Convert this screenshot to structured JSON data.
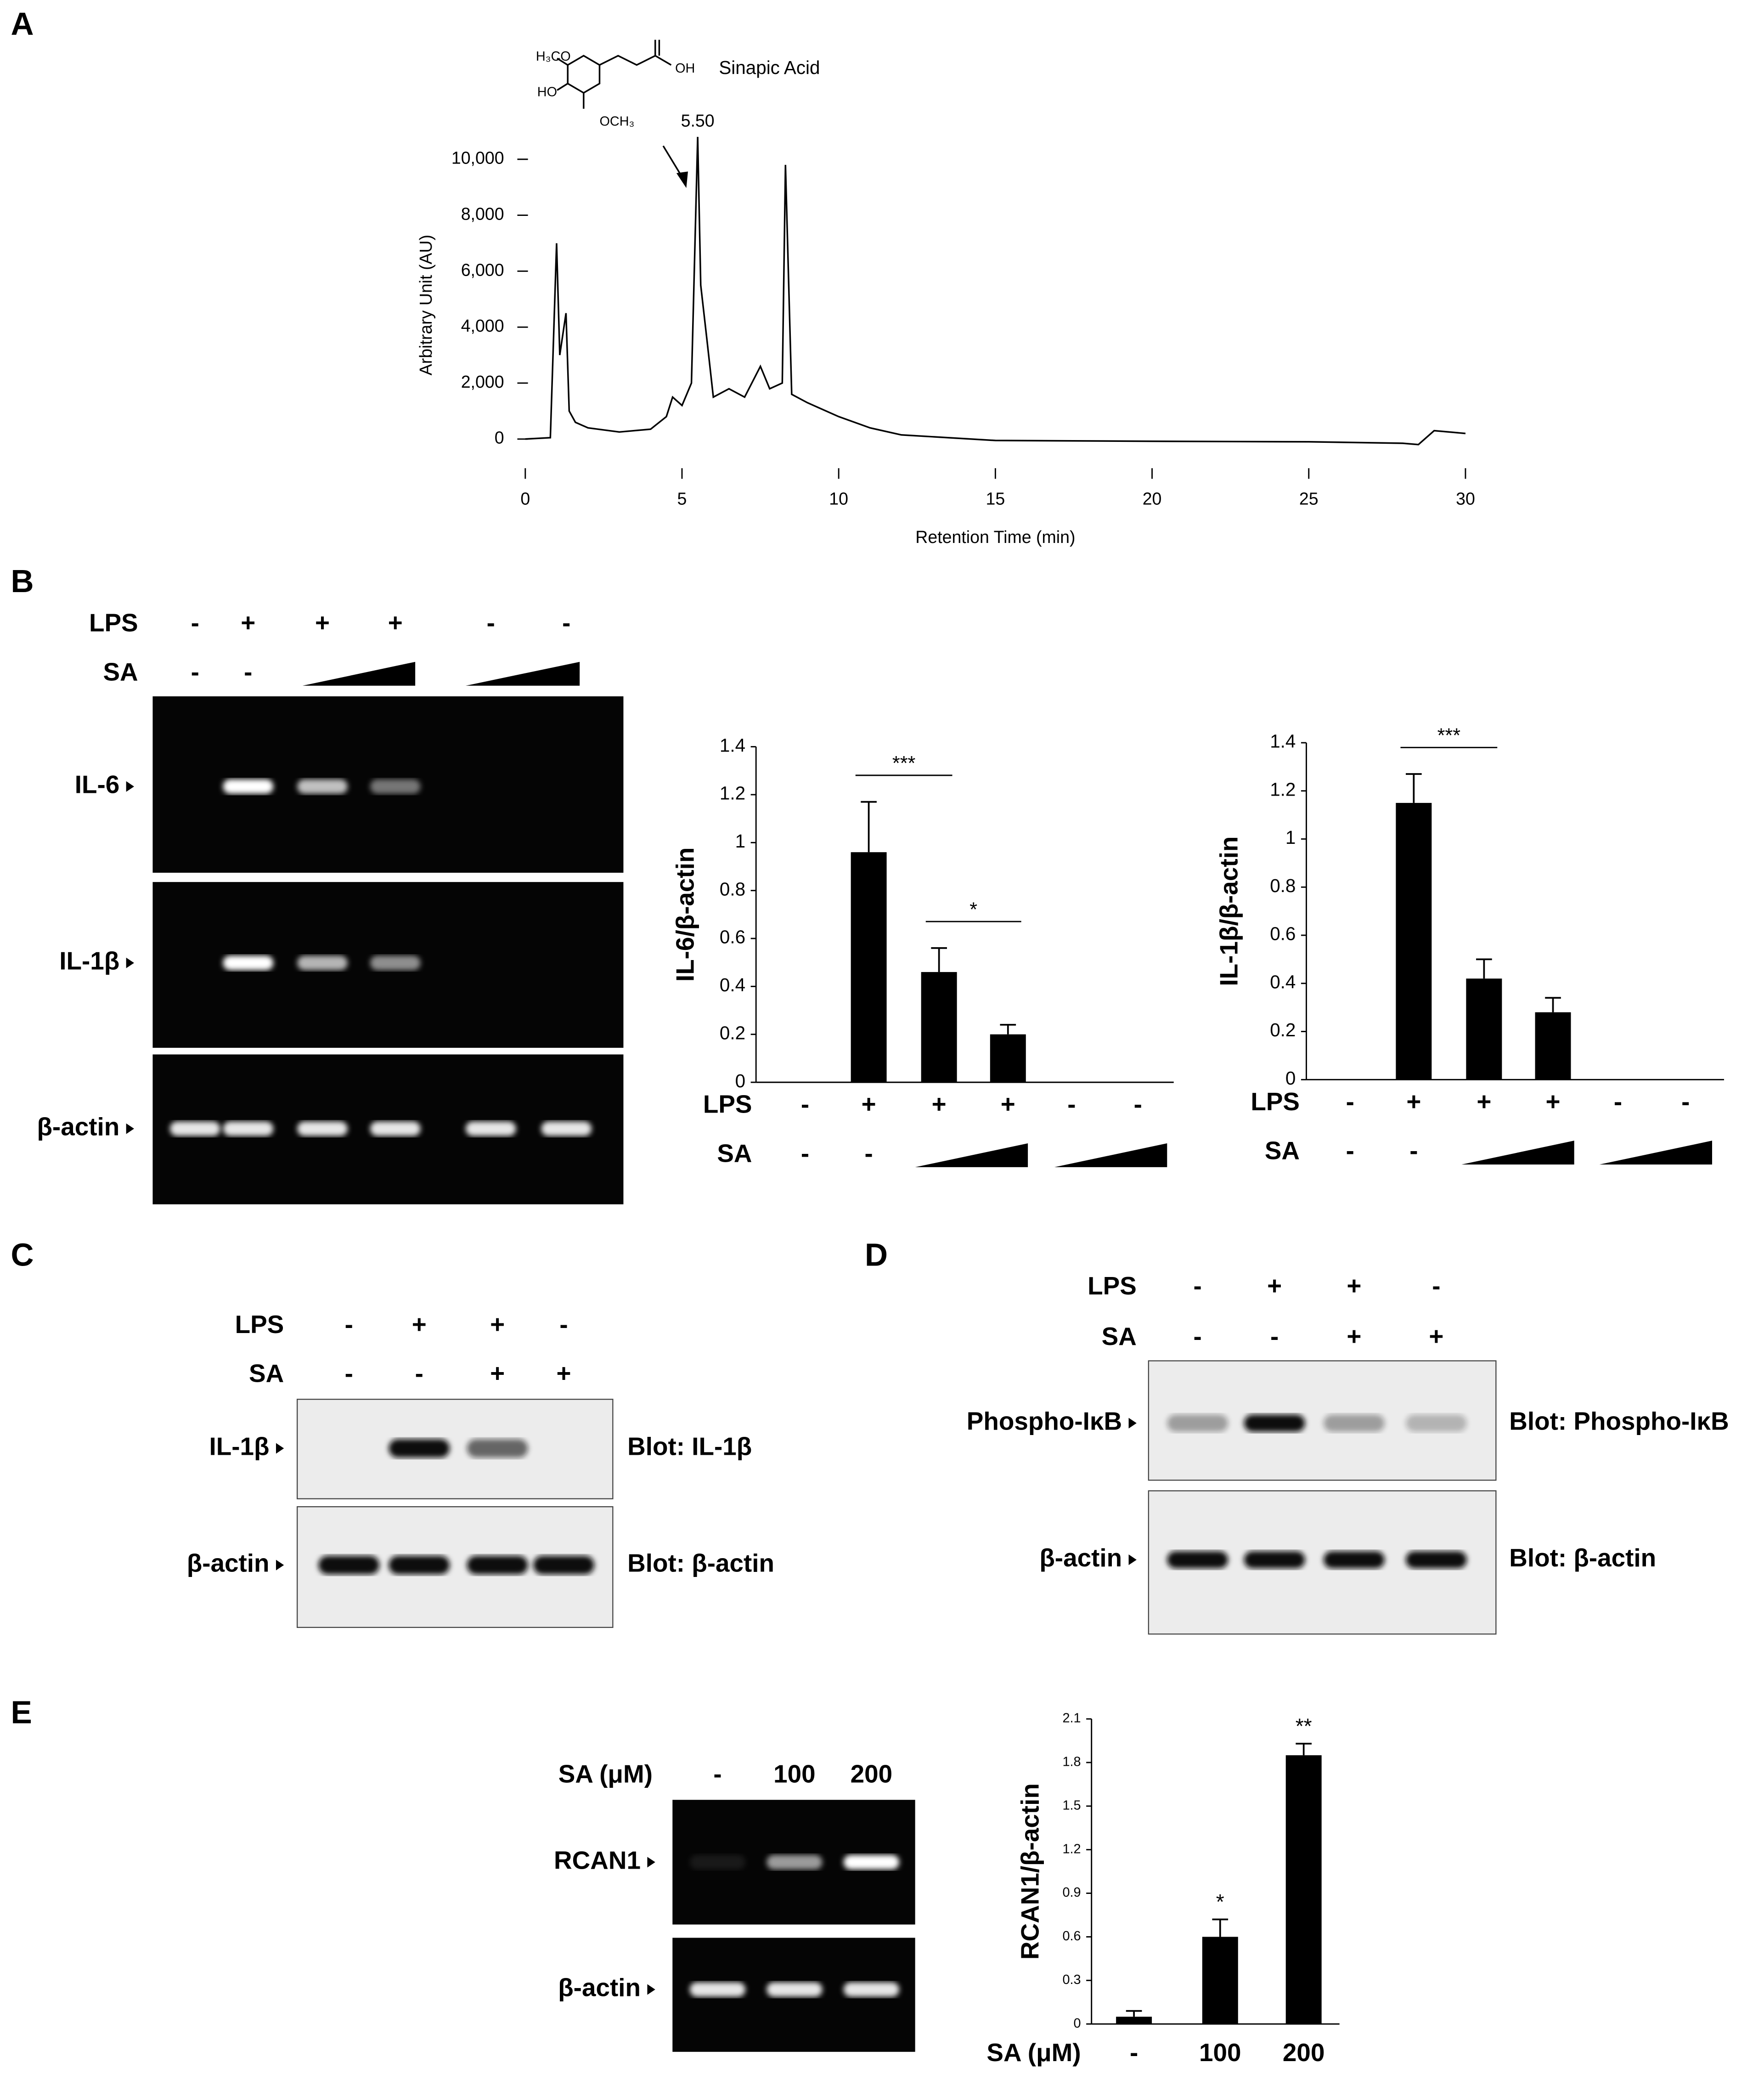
{
  "panel_labels": [
    "A",
    "B",
    "C",
    "D",
    "E"
  ],
  "structure": {
    "name": "Sinapic Acid",
    "groups": [
      "H₃CO",
      "HO",
      "OCH₃",
      "OH"
    ]
  },
  "chart_data": [
    {
      "type": "line",
      "x": [
        0,
        0.8,
        1.0,
        1.1,
        1.3,
        1.4,
        1.6,
        2,
        3,
        4,
        4.5,
        4.7,
        5.0,
        5.3,
        5.5,
        5.6,
        5.8,
        6,
        6.5,
        7,
        7.5,
        7.8,
        8.2,
        8.3,
        8.5,
        9,
        10,
        11,
        12,
        15,
        20,
        25,
        28,
        28.5,
        29,
        30
      ],
      "values": [
        0,
        50,
        7000,
        3000,
        4500,
        1000,
        600,
        400,
        250,
        350,
        800,
        1500,
        1200,
        2000,
        10800,
        5500,
        3500,
        1500,
        1800,
        1500,
        2600,
        1800,
        2000,
        9800,
        1600,
        1300,
        800,
        400,
        150,
        -50,
        -80,
        -100,
        -150,
        -200,
        300,
        200
      ],
      "color": "#000",
      "xlim": [
        0,
        30
      ],
      "ylim": [
        -900,
        11000
      ],
      "xticks": [
        0,
        5,
        10,
        15,
        20,
        25,
        30
      ],
      "yticks": [
        0,
        {
          "value": 2000,
          "label": "2,000"
        },
        {
          "value": 4000,
          "label": "4,000"
        },
        {
          "value": 6000,
          "label": "6,000"
        },
        {
          "value": 8000,
          "label": "8,000"
        },
        {
          "value": 10000,
          "label": "10,000"
        }
      ],
      "xlabel": "Retention Time (min)",
      "ylabel": "Arbitrary Unit (AU)",
      "peak": {
        "value": 5.5,
        "label": "5.50"
      }
    },
    {
      "type": "bar",
      "ylabel": "IL-6/β-actin",
      "values": [
        0,
        0.96,
        0.46,
        0.2,
        0,
        0
      ],
      "errors": [
        null,
        0.21,
        0.1,
        0.04,
        null,
        null
      ],
      "color": "#000",
      "ylim": [
        0,
        1.4
      ],
      "yticks": [
        0,
        0.2,
        0.4,
        0.6,
        0.8,
        1,
        1.2,
        1.4
      ],
      "treatments": [
        {
          "name": "LPS",
          "labels": [
            "-",
            "+",
            "+",
            "+",
            "-",
            "-"
          ]
        },
        {
          "name": "SA",
          "labels": [
            "-",
            "-",
            null,
            null,
            null,
            null
          ]
        }
      ],
      "brackets": [
        {
          "text": "***",
          "lanes": [
            1,
            2
          ]
        },
        {
          "text": "*",
          "lanes": [
            2,
            3
          ]
        }
      ]
    },
    {
      "type": "bar",
      "ylabel": "IL-1β/β-actin",
      "values": [
        0,
        1.15,
        0.42,
        0.28,
        0,
        0
      ],
      "errors": [
        null,
        0.12,
        0.08,
        0.06,
        null,
        null
      ],
      "color": "#000",
      "ylim": [
        0,
        1.4
      ],
      "yticks": [
        0,
        0.2,
        0.4,
        0.6,
        0.8,
        1,
        1.2,
        1.4
      ],
      "treatments": [
        {
          "name": "LPS",
          "labels": [
            "-",
            "+",
            "+",
            "+",
            "-",
            "-"
          ]
        },
        {
          "name": "SA",
          "labels": [
            "-",
            "-",
            null,
            null,
            null,
            null
          ]
        }
      ],
      "brackets": [
        {
          "text": "***",
          "lanes": [
            1,
            2
          ]
        }
      ]
    },
    {
      "type": "bar",
      "ylabel": "RCAN1/β-actin",
      "xlabel": "SA (μM)",
      "categories": [
        "-",
        "100",
        "200"
      ],
      "values": [
        0.05,
        0.6,
        1.85
      ],
      "errors": [
        0.04,
        0.12,
        0.08
      ],
      "color": "#000",
      "ylim": [
        0,
        2.1
      ],
      "yticks": [
        0,
        0.3,
        0.6,
        0.9,
        1.2,
        1.5,
        1.8,
        2.1
      ],
      "annotations": [
        null,
        "*",
        "**"
      ]
    }
  ],
  "gel_b": {
    "treatments": [
      {
        "name": "LPS",
        "labels": [
          "-",
          "+",
          "+",
          "+",
          "-",
          "-"
        ]
      },
      {
        "name": "SA",
        "labels": [
          "-",
          "-",
          null,
          null,
          null,
          null
        ]
      }
    ],
    "bands": [
      "IL-6",
      "IL-1β",
      "β-actin"
    ]
  },
  "blot_c": {
    "treatments": [
      {
        "name": "LPS",
        "labels": [
          "-",
          "+",
          "+",
          "-"
        ]
      },
      {
        "name": "SA",
        "labels": [
          "-",
          "-",
          "+",
          "+"
        ]
      }
    ],
    "bands": [
      "IL-1β",
      "β-actin"
    ],
    "blots": [
      "Blot: IL-1β",
      "Blot: β-actin"
    ]
  },
  "blot_d": {
    "treatments": [
      {
        "name": "LPS",
        "labels": [
          "-",
          "+",
          "+",
          "-"
        ]
      },
      {
        "name": "SA",
        "labels": [
          "-",
          "-",
          "+",
          "+"
        ]
      }
    ],
    "bands": [
      "Phospho-IκB",
      "β-actin"
    ],
    "blots": [
      "Blot: Phospho-IκB",
      "Blot: β-actin"
    ]
  },
  "gel_e": {
    "treatments": [
      {
        "name": "SA (μM)",
        "labels": [
          "-",
          "100",
          "200"
        ]
      }
    ],
    "bands": [
      "RCAN1",
      "β-actin"
    ]
  }
}
